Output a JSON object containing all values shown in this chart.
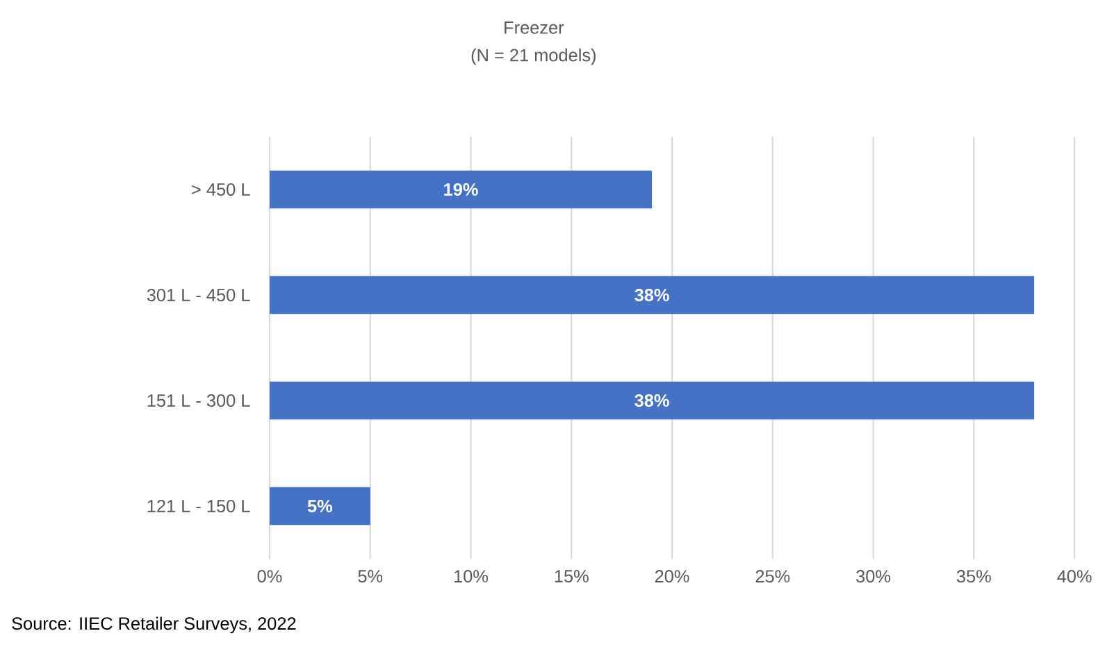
{
  "chart_data": {
    "type": "bar",
    "orientation": "horizontal",
    "title": "Freezer",
    "subtitle": "(N = 21 models)",
    "categories": [
      "> 450 L",
      "301 L - 450 L",
      "151 L - 300 L",
      "121 L - 150 L"
    ],
    "values": [
      19,
      38,
      38,
      5
    ],
    "value_labels": [
      "19%",
      "38%",
      "38%",
      "5%"
    ],
    "color": "#4472c4",
    "xlim": [
      0,
      40
    ],
    "xticks": [
      {
        "value": 0,
        "label": "0%"
      },
      {
        "value": 5,
        "label": "5%"
      },
      {
        "value": 10,
        "label": "10%"
      },
      {
        "value": 15,
        "label": "15%"
      },
      {
        "value": 20,
        "label": "20%"
      },
      {
        "value": 25,
        "label": "25%"
      },
      {
        "value": 30,
        "label": "30%"
      },
      {
        "value": 35,
        "label": "35%"
      },
      {
        "value": 40,
        "label": "40%"
      }
    ],
    "grid": "x",
    "annotations": [
      "Source: IIEC Retailer Surveys, 2022"
    ]
  }
}
